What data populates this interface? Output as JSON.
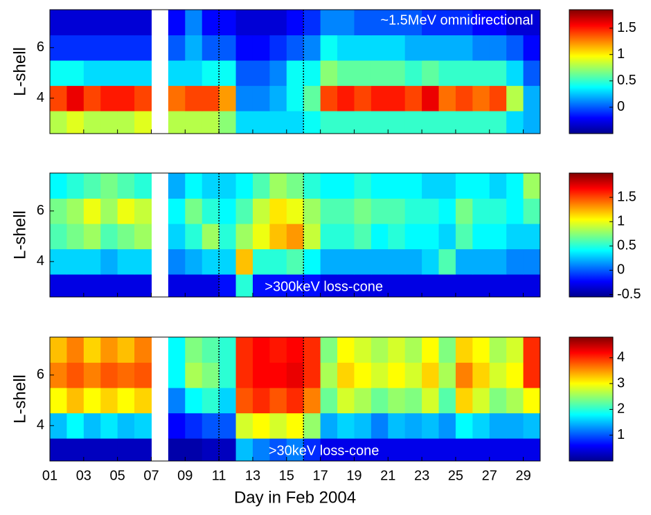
{
  "chart_data": [
    {
      "type": "heatmap",
      "annotation": "~1.5MeV omnidirectional",
      "ylabel": "L-shell",
      "xlim": [
        1,
        30
      ],
      "ylim": [
        2.6,
        7.5
      ],
      "yticks": [
        4,
        6
      ],
      "xbins": [
        1,
        2,
        3,
        4,
        5,
        6,
        7,
        8,
        9,
        10,
        11,
        12,
        13,
        14,
        15,
        16,
        17,
        18,
        19,
        20,
        21,
        22,
        23,
        24,
        25,
        26,
        27,
        28,
        29,
        30
      ],
      "ybins": [
        2.6,
        3.5,
        4.5,
        5.5,
        6.5,
        7.5
      ],
      "vlines": [
        11,
        16
      ],
      "colorbar": {
        "lim": [
          -0.5,
          1.85
        ],
        "ticks": [
          0,
          0.5,
          1,
          1.5
        ]
      },
      "values": [
        [
          0.8,
          0.9,
          0.8,
          0.8,
          0.8,
          0.9,
          null,
          0.8,
          0.8,
          0.8,
          0.7,
          0.3,
          0.3,
          0.3,
          0.3,
          0.4,
          0.5,
          0.5,
          0.5,
          0.5,
          0.5,
          0.5,
          0.5,
          0.5,
          0.5,
          0.5,
          0.5,
          0.3,
          0.2
        ],
        [
          1.4,
          1.6,
          1.4,
          1.5,
          1.5,
          1.4,
          null,
          1.3,
          1.4,
          1.4,
          1.2,
          0.1,
          0.1,
          0.2,
          0.4,
          0.6,
          1.4,
          1.5,
          1.4,
          1.5,
          1.5,
          1.4,
          1.6,
          1.3,
          1.4,
          1.3,
          1.4,
          0.8,
          0.2
        ],
        [
          0.4,
          0.4,
          0.3,
          0.3,
          0.3,
          0.3,
          null,
          0.3,
          0.3,
          0.4,
          0.4,
          0.0,
          0.0,
          0.1,
          0.4,
          0.4,
          0.7,
          0.6,
          0.6,
          0.6,
          0.6,
          0.5,
          0.6,
          0.5,
          0.5,
          0.5,
          0.5,
          0.3,
          0.0
        ],
        [
          -0.1,
          -0.1,
          -0.1,
          -0.1,
          -0.1,
          -0.1,
          null,
          0.0,
          0.2,
          0.0,
          0.0,
          -0.2,
          -0.2,
          -0.1,
          0.0,
          0.1,
          0.4,
          0.3,
          0.3,
          0.3,
          0.3,
          0.2,
          0.2,
          0.2,
          0.2,
          0.1,
          0.1,
          0.0,
          -0.2
        ],
        [
          -0.3,
          -0.3,
          -0.3,
          -0.3,
          -0.3,
          -0.3,
          null,
          -0.2,
          0.1,
          -0.2,
          -0.2,
          -0.3,
          -0.3,
          -0.3,
          -0.2,
          -0.1,
          0.1,
          0.1,
          0.0,
          0.0,
          0.0,
          0.0,
          -0.1,
          -0.1,
          -0.1,
          -0.2,
          -0.2,
          -0.3,
          -0.3
        ]
      ]
    },
    {
      "type": "heatmap",
      "annotation": ">300keV loss-cone",
      "ylabel": "L-shell",
      "xlim": [
        1,
        30
      ],
      "ylim": [
        2.6,
        7.5
      ],
      "yticks": [
        4,
        6
      ],
      "xbins": [
        1,
        2,
        3,
        4,
        5,
        6,
        7,
        8,
        9,
        10,
        11,
        12,
        13,
        14,
        15,
        16,
        17,
        18,
        19,
        20,
        21,
        22,
        23,
        24,
        25,
        26,
        27,
        28,
        29,
        30
      ],
      "ybins": [
        2.6,
        3.5,
        4.5,
        5.5,
        6.5,
        7.5
      ],
      "vlines": [
        11,
        16
      ],
      "colorbar": {
        "lim": [
          -0.55,
          2.0
        ],
        "ticks": [
          -0.5,
          0,
          0.5,
          1,
          1.5
        ]
      },
      "values": [
        [
          -0.3,
          -0.3,
          -0.3,
          -0.3,
          -0.3,
          -0.3,
          null,
          -0.3,
          -0.3,
          -0.3,
          -0.2,
          0.5,
          -0.2,
          -0.2,
          -0.2,
          -0.2,
          -0.3,
          -0.3,
          -0.3,
          -0.3,
          -0.3,
          -0.3,
          -0.3,
          -0.3,
          -0.3,
          -0.3,
          -0.3,
          -0.3,
          -0.3
        ],
        [
          0.3,
          0.3,
          0.3,
          0.2,
          0.3,
          0.3,
          null,
          0.1,
          0.2,
          0.3,
          0.3,
          1.2,
          0.5,
          0.5,
          0.6,
          0.4,
          0.2,
          0.2,
          0.2,
          0.2,
          0.2,
          0.2,
          0.3,
          0.6,
          0.2,
          0.2,
          0.2,
          0.1,
          0.1
        ],
        [
          0.6,
          0.7,
          0.8,
          0.6,
          0.7,
          0.8,
          null,
          0.3,
          0.5,
          0.8,
          0.5,
          0.8,
          1.0,
          1.2,
          1.3,
          0.9,
          0.5,
          0.5,
          0.6,
          0.4,
          0.5,
          0.4,
          0.4,
          0.3,
          0.6,
          0.4,
          0.4,
          0.3,
          0.3
        ],
        [
          0.7,
          0.8,
          1.0,
          0.8,
          1.0,
          0.9,
          null,
          0.4,
          0.7,
          0.5,
          0.4,
          0.6,
          0.9,
          1.1,
          1.0,
          0.8,
          0.6,
          0.6,
          0.7,
          0.6,
          0.6,
          0.5,
          0.5,
          0.4,
          0.7,
          0.5,
          0.5,
          0.4,
          0.6
        ],
        [
          0.4,
          0.5,
          0.6,
          0.7,
          0.6,
          0.5,
          null,
          0.2,
          0.4,
          0.3,
          0.3,
          0.4,
          0.6,
          0.8,
          0.7,
          0.5,
          0.4,
          0.4,
          0.5,
          0.4,
          0.4,
          0.4,
          0.3,
          0.3,
          0.4,
          0.4,
          0.3,
          0.4,
          0.8
        ]
      ]
    },
    {
      "type": "heatmap",
      "annotation": ">30keV loss-cone",
      "ylabel": "L-shell",
      "xlabel": "Day in Feb 2004",
      "xlim": [
        1,
        30
      ],
      "ylim": [
        2.6,
        7.5
      ],
      "yticks": [
        4,
        6
      ],
      "xticks": [
        {
          "value": 1,
          "label": "01"
        },
        {
          "value": 3,
          "label": "03"
        },
        {
          "value": 5,
          "label": "05"
        },
        {
          "value": 7,
          "label": "07"
        },
        {
          "value": 9,
          "label": "09"
        },
        11,
        13,
        15,
        17,
        19,
        21,
        23,
        25,
        27,
        29
      ],
      "xbins": [
        1,
        2,
        3,
        4,
        5,
        6,
        7,
        8,
        9,
        10,
        11,
        12,
        13,
        14,
        15,
        16,
        17,
        18,
        19,
        20,
        21,
        22,
        23,
        24,
        25,
        26,
        27,
        28,
        29,
        30
      ],
      "ybins": [
        2.6,
        3.5,
        4.5,
        5.5,
        6.5,
        7.5
      ],
      "vlines": [
        11,
        16
      ],
      "colorbar": {
        "lim": [
          0,
          4.8
        ],
        "ticks": [
          1,
          2,
          3,
          4
        ]
      },
      "values": [
        [
          0.3,
          0.3,
          0.3,
          0.3,
          0.3,
          0.3,
          null,
          0.2,
          0.2,
          0.3,
          0.3,
          1.5,
          1.2,
          1.0,
          1.2,
          0.8,
          0.5,
          0.5,
          0.5,
          0.5,
          0.5,
          0.5,
          0.5,
          0.5,
          0.5,
          0.5,
          0.5,
          0.5,
          0.5
        ],
        [
          1.5,
          1.8,
          1.5,
          1.7,
          1.5,
          1.6,
          null,
          0.6,
          0.8,
          1.0,
          1.0,
          2.8,
          3.0,
          2.8,
          3.0,
          2.5,
          1.4,
          1.6,
          1.5,
          1.2,
          1.5,
          1.4,
          1.5,
          1.3,
          1.8,
          1.6,
          1.4,
          1.4,
          1.5
        ],
        [
          3.0,
          3.3,
          3.0,
          3.2,
          3.0,
          3.2,
          null,
          1.2,
          1.8,
          2.0,
          1.6,
          3.8,
          4.0,
          3.8,
          4.0,
          3.6,
          2.3,
          2.8,
          2.6,
          2.3,
          2.5,
          2.4,
          2.8,
          2.2,
          3.2,
          2.8,
          2.4,
          2.6,
          3.0
        ],
        [
          3.6,
          3.8,
          3.6,
          3.8,
          3.7,
          3.8,
          null,
          1.8,
          2.6,
          2.4,
          2.0,
          4.0,
          4.2,
          4.2,
          4.3,
          4.0,
          2.6,
          3.2,
          3.0,
          2.8,
          3.0,
          2.8,
          3.2,
          2.6,
          3.6,
          3.2,
          2.8,
          3.0,
          4.0
        ],
        [
          3.3,
          3.6,
          3.2,
          3.5,
          3.3,
          3.6,
          null,
          1.8,
          2.4,
          2.2,
          2.0,
          4.0,
          4.2,
          4.1,
          4.2,
          4.0,
          2.4,
          3.0,
          2.8,
          2.6,
          2.8,
          2.6,
          3.0,
          2.4,
          3.2,
          3.0,
          2.6,
          2.8,
          4.0
        ]
      ]
    }
  ]
}
